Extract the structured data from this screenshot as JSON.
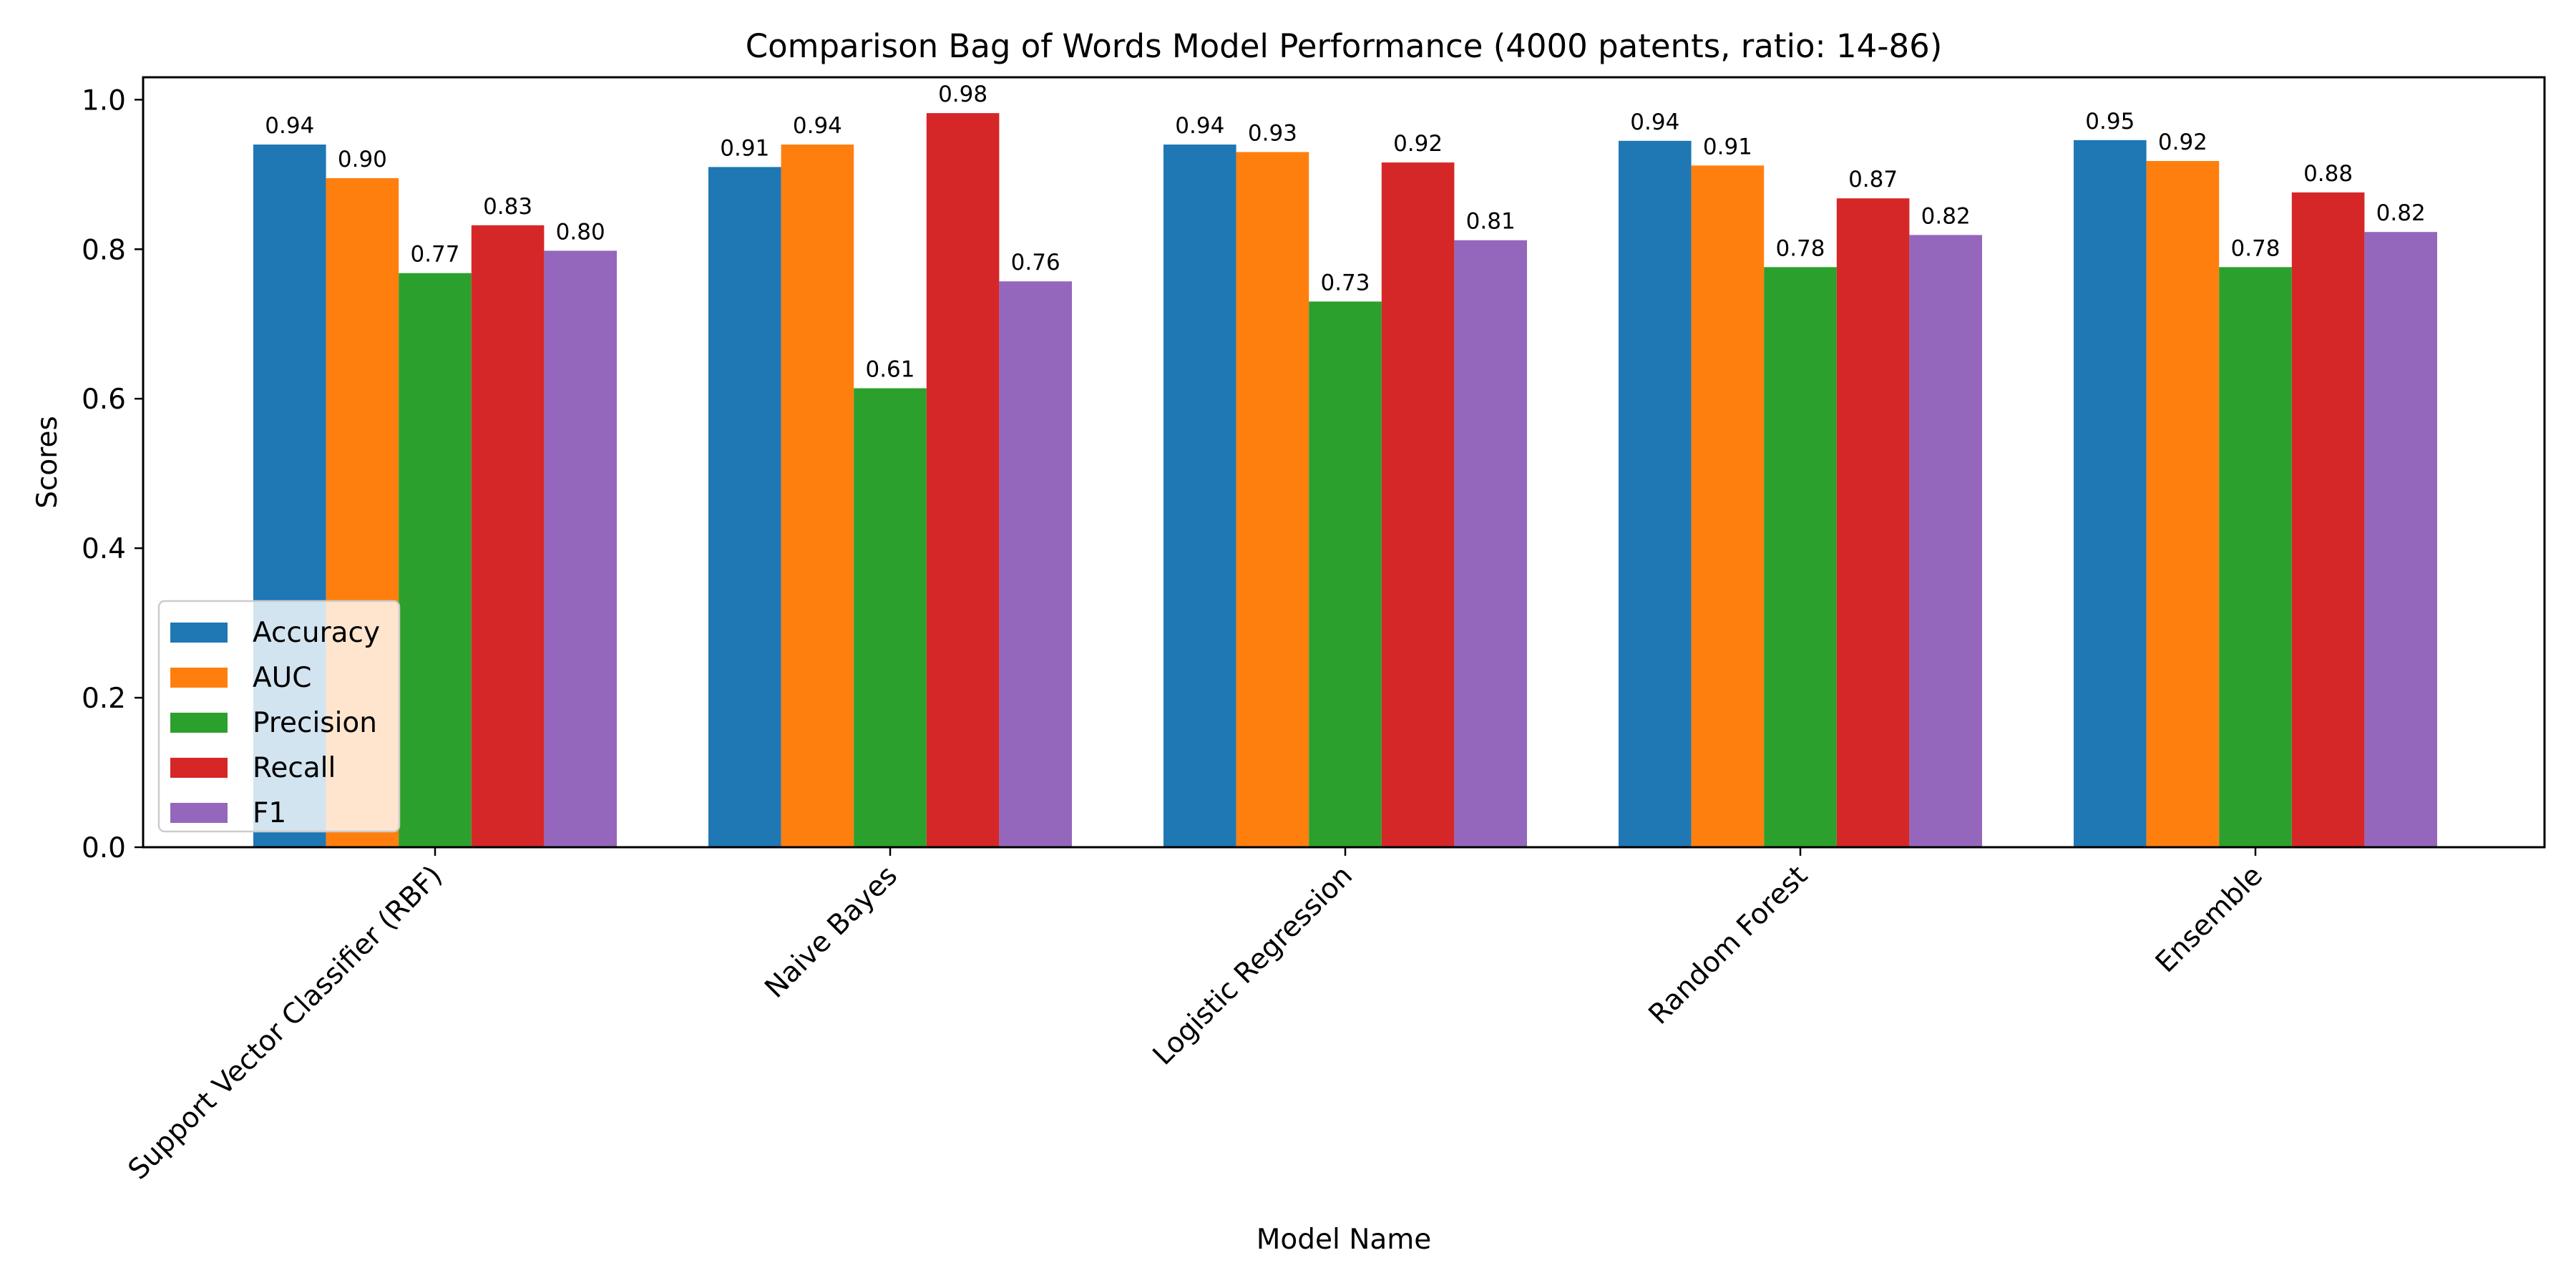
{
  "chart_data": {
    "type": "bar",
    "title": "Comparison Bag of Words Model Performance (4000 patents, ratio: 14-86)",
    "xlabel": "Model Name",
    "ylabel": "Scores",
    "ylim": [
      0,
      1.03
    ],
    "yticks": [
      "0.0",
      "0.2",
      "0.4",
      "0.6",
      "0.8",
      "1.0"
    ],
    "grid": false,
    "legend_position": "lower-left",
    "categories": [
      "Support Vector Classifier (RBF)",
      "Naive Bayes",
      "Logistic Regression",
      "Random Forest",
      "Ensemble"
    ],
    "series": [
      {
        "name": "Accuracy",
        "color": "#1f77b4",
        "values": [
          0.94,
          0.91,
          0.94,
          0.945,
          0.946
        ],
        "labels": [
          "0.94",
          "0.91",
          "0.94",
          "0.94",
          "0.95"
        ]
      },
      {
        "name": "AUC",
        "color": "#ff7f0e",
        "values": [
          0.895,
          0.94,
          0.93,
          0.912,
          0.918
        ],
        "labels": [
          "0.90",
          "0.94",
          "0.93",
          "0.91",
          "0.92"
        ]
      },
      {
        "name": "Precision",
        "color": "#2ca02c",
        "values": [
          0.768,
          0.614,
          0.73,
          0.776,
          0.776
        ],
        "labels": [
          "0.77",
          "0.61",
          "0.73",
          "0.78",
          "0.78"
        ]
      },
      {
        "name": "Recall",
        "color": "#d62728",
        "values": [
          0.832,
          0.982,
          0.916,
          0.868,
          0.876
        ],
        "labels": [
          "0.83",
          "0.98",
          "0.92",
          "0.87",
          "0.88"
        ]
      },
      {
        "name": "F1",
        "color": "#9467bd",
        "values": [
          0.798,
          0.757,
          0.812,
          0.819,
          0.823
        ],
        "labels": [
          "0.80",
          "0.76",
          "0.81",
          "0.82",
          "0.82"
        ]
      }
    ]
  }
}
